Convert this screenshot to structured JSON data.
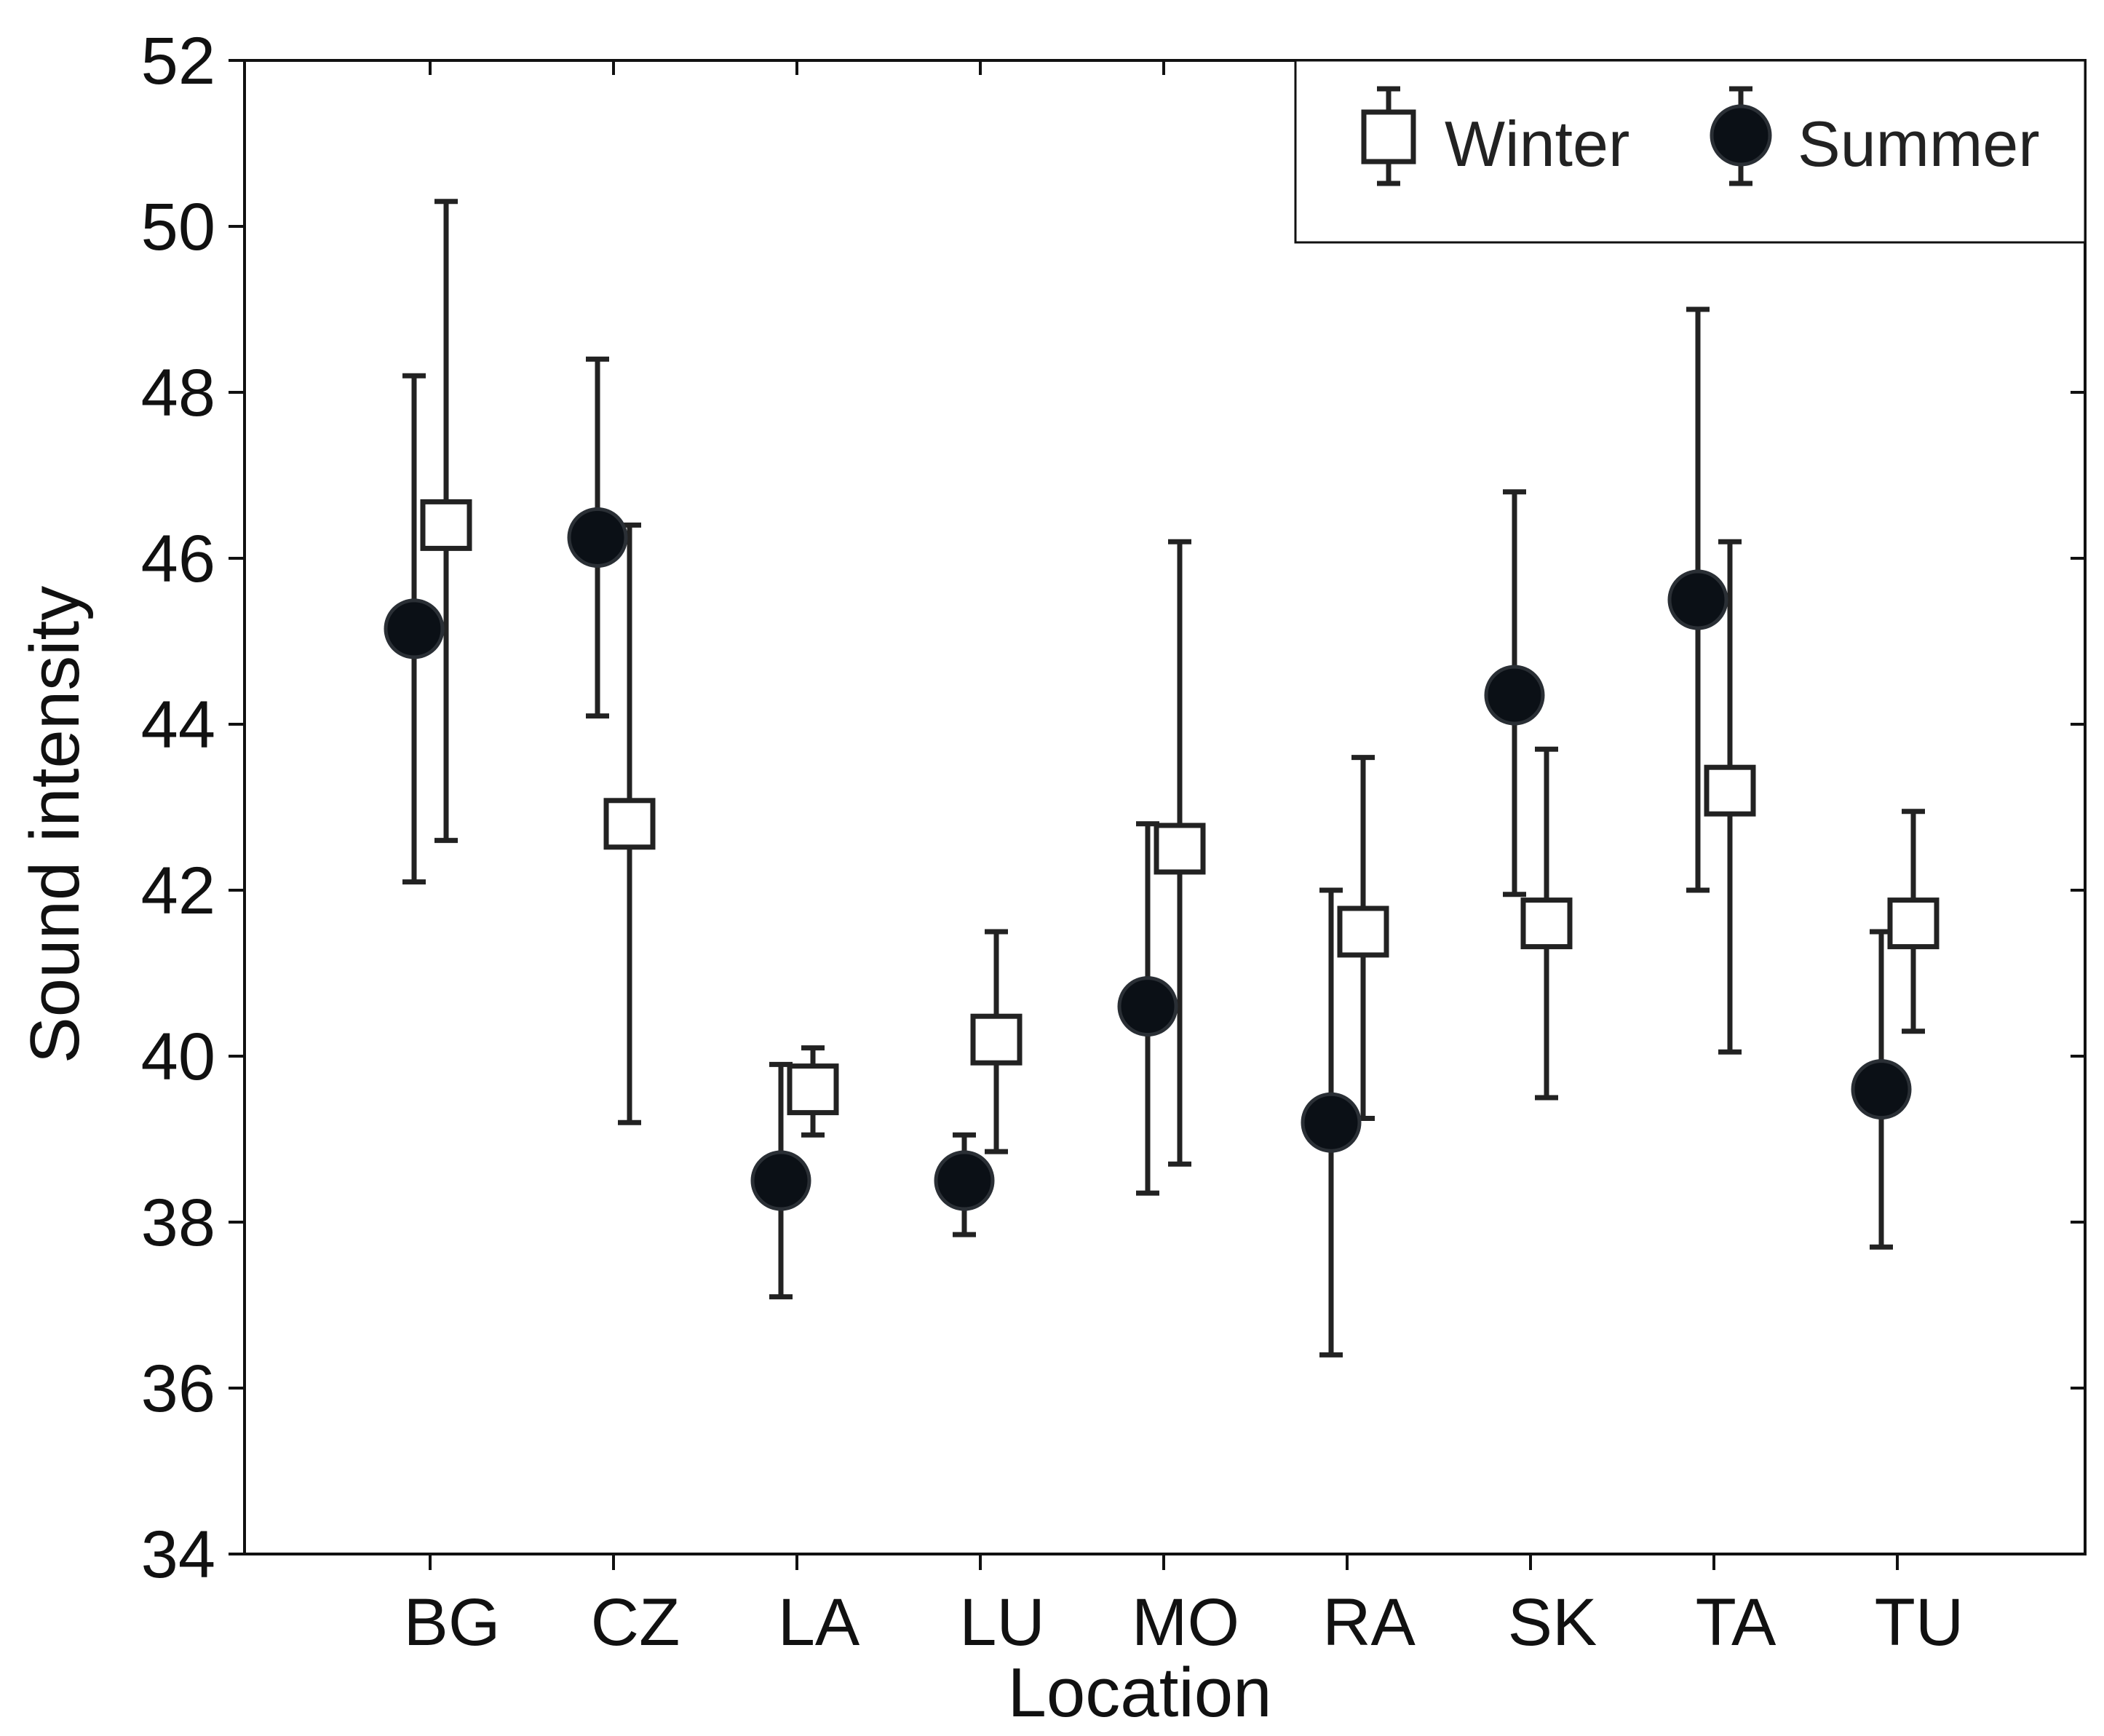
{
  "chart_data": {
    "type": "scatter",
    "title": "",
    "xlabel": "Location",
    "ylabel": "Sound intensity",
    "categories": [
      "BG",
      "CZ",
      "LA",
      "LU",
      "MO",
      "RA",
      "SK",
      "TA",
      "TU"
    ],
    "ylim": [
      34,
      52
    ],
    "yticks": [
      34,
      36,
      38,
      40,
      42,
      44,
      46,
      48,
      50,
      52
    ],
    "ytick_labels": [
      "34",
      "36",
      "38",
      "40",
      "42",
      "44",
      "46",
      "48",
      "50",
      "52"
    ],
    "grid": false,
    "legend_position": "top-right",
    "series": [
      {
        "name": "Winter",
        "marker": "open-square",
        "color": "#222222",
        "values": [
          46.4,
          42.8,
          39.6,
          40.2,
          42.5,
          41.5,
          41.6,
          43.2,
          41.6
        ],
        "lower": [
          42.6,
          39.2,
          39.05,
          38.85,
          38.7,
          39.25,
          39.5,
          40.05,
          40.3
        ],
        "upper": [
          50.3,
          46.4,
          40.1,
          41.5,
          46.2,
          43.6,
          43.7,
          46.2,
          42.95
        ]
      },
      {
        "name": "Summer",
        "marker": "filled-circle",
        "color": "#0b1016",
        "values": [
          45.15,
          46.25,
          38.5,
          38.5,
          40.6,
          39.2,
          44.35,
          45.5,
          39.6
        ],
        "lower": [
          42.1,
          44.1,
          37.1,
          37.85,
          38.35,
          36.4,
          41.95,
          42.0,
          37.7
        ],
        "upper": [
          48.2,
          48.4,
          39.9,
          39.05,
          42.8,
          42.0,
          46.8,
          49.0,
          41.5
        ]
      }
    ]
  }
}
